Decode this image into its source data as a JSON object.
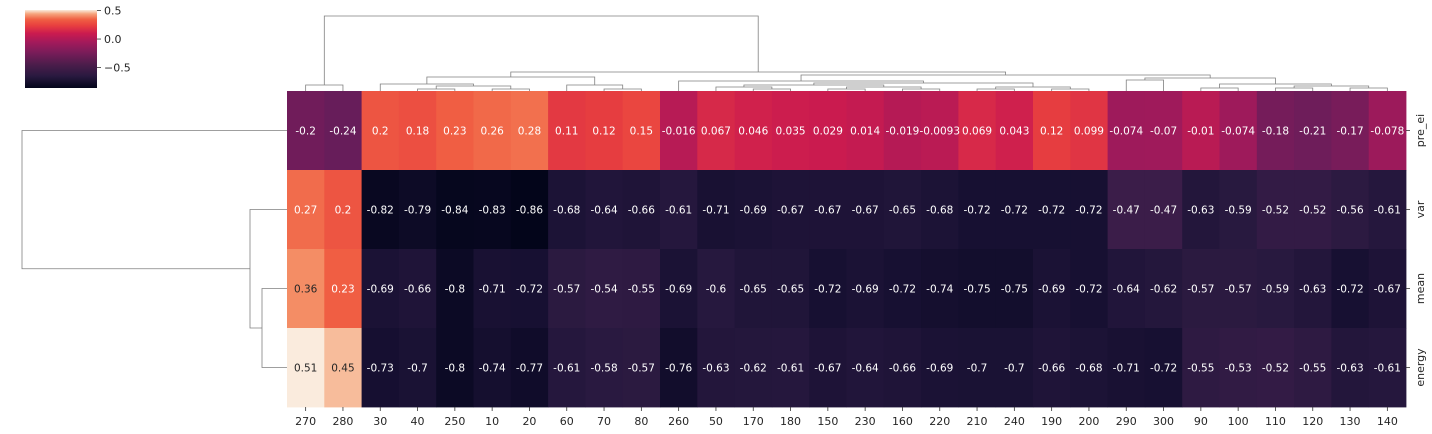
{
  "chart_data": {
    "type": "heatmap",
    "title": "",
    "xlabel": "",
    "ylabel": "",
    "columns": [
      "270",
      "280",
      "30",
      "40",
      "250",
      "10",
      "20",
      "60",
      "70",
      "80",
      "260",
      "50",
      "170",
      "180",
      "150",
      "230",
      "160",
      "220",
      "210",
      "240",
      "190",
      "200",
      "290",
      "300",
      "90",
      "100",
      "110",
      "120",
      "130",
      "140"
    ],
    "rows": [
      "pre_ei",
      "var",
      "mean",
      "energy"
    ],
    "values": [
      [
        -0.2,
        -0.24,
        0.2,
        0.18,
        0.23,
        0.26,
        0.28,
        0.11,
        0.12,
        0.15,
        -0.016,
        0.067,
        0.046,
        0.035,
        0.029,
        0.014,
        -0.019,
        -0.0093,
        0.069,
        0.043,
        0.12,
        0.099,
        -0.074,
        -0.07,
        -0.01,
        -0.074,
        -0.18,
        -0.21,
        -0.17,
        -0.078
      ],
      [
        0.27,
        0.2,
        -0.82,
        -0.79,
        -0.84,
        -0.83,
        -0.86,
        -0.68,
        -0.64,
        -0.66,
        -0.61,
        -0.71,
        -0.69,
        -0.67,
        -0.67,
        -0.67,
        -0.65,
        -0.68,
        -0.72,
        -0.72,
        -0.72,
        -0.72,
        -0.47,
        -0.47,
        -0.63,
        -0.59,
        -0.52,
        -0.52,
        -0.56,
        -0.61
      ],
      [
        0.36,
        0.23,
        -0.69,
        -0.66,
        -0.8,
        -0.71,
        -0.72,
        -0.57,
        -0.54,
        -0.55,
        -0.69,
        -0.6,
        -0.65,
        -0.65,
        -0.72,
        -0.69,
        -0.72,
        -0.74,
        -0.75,
        -0.75,
        -0.69,
        -0.72,
        -0.64,
        -0.62,
        -0.57,
        -0.57,
        -0.59,
        -0.63,
        -0.72,
        -0.67
      ],
      [
        0.51,
        0.45,
        -0.73,
        -0.7,
        -0.8,
        -0.74,
        -0.77,
        -0.61,
        -0.58,
        -0.57,
        -0.76,
        -0.63,
        -0.62,
        -0.61,
        -0.67,
        -0.64,
        -0.66,
        -0.69,
        -0.7,
        -0.7,
        -0.66,
        -0.68,
        -0.71,
        -0.72,
        -0.55,
        -0.53,
        -0.52,
        -0.55,
        -0.63,
        -0.61
      ]
    ],
    "value_labels": [
      [
        "-0.2",
        "-0.24",
        "0.2",
        "0.18",
        "0.23",
        "0.26",
        "0.28",
        "0.11",
        "0.12",
        "0.15",
        "-0.016",
        "0.067",
        "0.046",
        "0.035",
        "0.029",
        "0.014",
        "-0.019",
        "-0.0093",
        "0.069",
        "0.043",
        "0.12",
        "0.099",
        "-0.074",
        "-0.07",
        "-0.01",
        "-0.074",
        "-0.18",
        "-0.21",
        "-0.17",
        "-0.078"
      ],
      [
        "0.27",
        "0.2",
        "-0.82",
        "-0.79",
        "-0.84",
        "-0.83",
        "-0.86",
        "-0.68",
        "-0.64",
        "-0.66",
        "-0.61",
        "-0.71",
        "-0.69",
        "-0.67",
        "-0.67",
        "-0.67",
        "-0.65",
        "-0.68",
        "-0.72",
        "-0.72",
        "-0.72",
        "-0.72",
        "-0.47",
        "-0.47",
        "-0.63",
        "-0.59",
        "-0.52",
        "-0.52",
        "-0.56",
        "-0.61"
      ],
      [
        "0.36",
        "0.23",
        "-0.69",
        "-0.66",
        "-0.8",
        "-0.71",
        "-0.72",
        "-0.57",
        "-0.54",
        "-0.55",
        "-0.69",
        "-0.6",
        "-0.65",
        "-0.65",
        "-0.72",
        "-0.69",
        "-0.72",
        "-0.74",
        "-0.75",
        "-0.75",
        "-0.69",
        "-0.72",
        "-0.64",
        "-0.62",
        "-0.57",
        "-0.57",
        "-0.59",
        "-0.63",
        "-0.72",
        "-0.67"
      ],
      [
        "0.51",
        "0.45",
        "-0.73",
        "-0.7",
        "-0.8",
        "-0.74",
        "-0.77",
        "-0.61",
        "-0.58",
        "-0.57",
        "-0.76",
        "-0.63",
        "-0.62",
        "-0.61",
        "-0.67",
        "-0.64",
        "-0.66",
        "-0.69",
        "-0.7",
        "-0.7",
        "-0.66",
        "-0.68",
        "-0.71",
        "-0.72",
        "-0.55",
        "-0.53",
        "-0.52",
        "-0.55",
        "-0.63",
        "-0.61"
      ]
    ],
    "color_range": [
      -0.86,
      0.51
    ],
    "colormap": "rocket",
    "colorbar": {
      "ticks": [
        0.5,
        0.0,
        -0.5
      ],
      "tick_labels": [
        "0.5",
        "0.0",
        "−0.5"
      ]
    },
    "row_dendrogram": true,
    "column_dendrogram": true,
    "grid": false
  }
}
